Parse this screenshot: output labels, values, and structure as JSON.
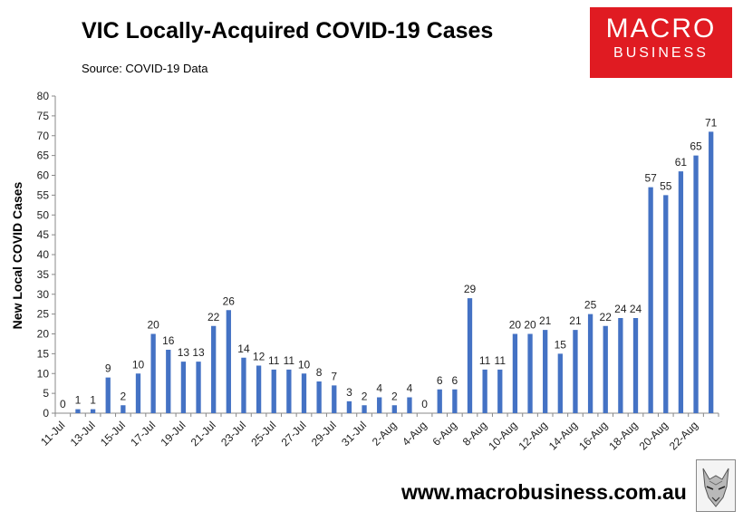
{
  "header": {
    "title": "VIC Locally-Acquired COVID-19 Cases",
    "source": "Source: COVID-19 Data"
  },
  "logo": {
    "line1": "MACRO",
    "line2": "BUSINESS",
    "color": "#e01b22"
  },
  "footer": {
    "url": "www.macrobusiness.com.au"
  },
  "chart_data": {
    "type": "bar",
    "title": "VIC Locally-Acquired COVID-19 Cases",
    "xlabel": "",
    "ylabel": "New Local COVID Cases",
    "ylim": [
      0,
      80
    ],
    "yticks": [
      0,
      5,
      10,
      15,
      20,
      25,
      30,
      35,
      40,
      45,
      50,
      55,
      60,
      65,
      70,
      75,
      80
    ],
    "bar_color": "#4472c4",
    "grid": false,
    "categories": [
      "11-Jul",
      "12-Jul",
      "13-Jul",
      "14-Jul",
      "15-Jul",
      "16-Jul",
      "17-Jul",
      "18-Jul",
      "19-Jul",
      "20-Jul",
      "21-Jul",
      "22-Jul",
      "23-Jul",
      "24-Jul",
      "25-Jul",
      "26-Jul",
      "27-Jul",
      "28-Jul",
      "29-Jul",
      "30-Jul",
      "31-Jul",
      "1-Aug",
      "2-Aug",
      "3-Aug",
      "4-Aug",
      "5-Aug",
      "6-Aug",
      "7-Aug",
      "8-Aug",
      "9-Aug",
      "10-Aug",
      "11-Aug",
      "12-Aug",
      "13-Aug",
      "14-Aug",
      "15-Aug",
      "16-Aug",
      "17-Aug",
      "18-Aug",
      "19-Aug",
      "20-Aug",
      "21-Aug",
      "22-Aug",
      "23-Aug"
    ],
    "tick_labels": [
      "11-Jul",
      "13-Jul",
      "15-Jul",
      "17-Jul",
      "19-Jul",
      "21-Jul",
      "23-Jul",
      "25-Jul",
      "27-Jul",
      "29-Jul",
      "31-Jul",
      "2-Aug",
      "4-Aug",
      "6-Aug",
      "8-Aug",
      "10-Aug",
      "12-Aug",
      "14-Aug",
      "16-Aug",
      "18-Aug",
      "20-Aug",
      "22-Aug"
    ],
    "values": [
      0,
      1,
      1,
      9,
      2,
      10,
      20,
      16,
      13,
      13,
      22,
      26,
      14,
      12,
      11,
      11,
      10,
      8,
      7,
      3,
      2,
      4,
      2,
      4,
      0,
      6,
      6,
      29,
      11,
      11,
      20,
      20,
      21,
      15,
      21,
      25,
      22,
      24,
      24,
      57,
      55,
      61,
      65,
      71
    ]
  }
}
